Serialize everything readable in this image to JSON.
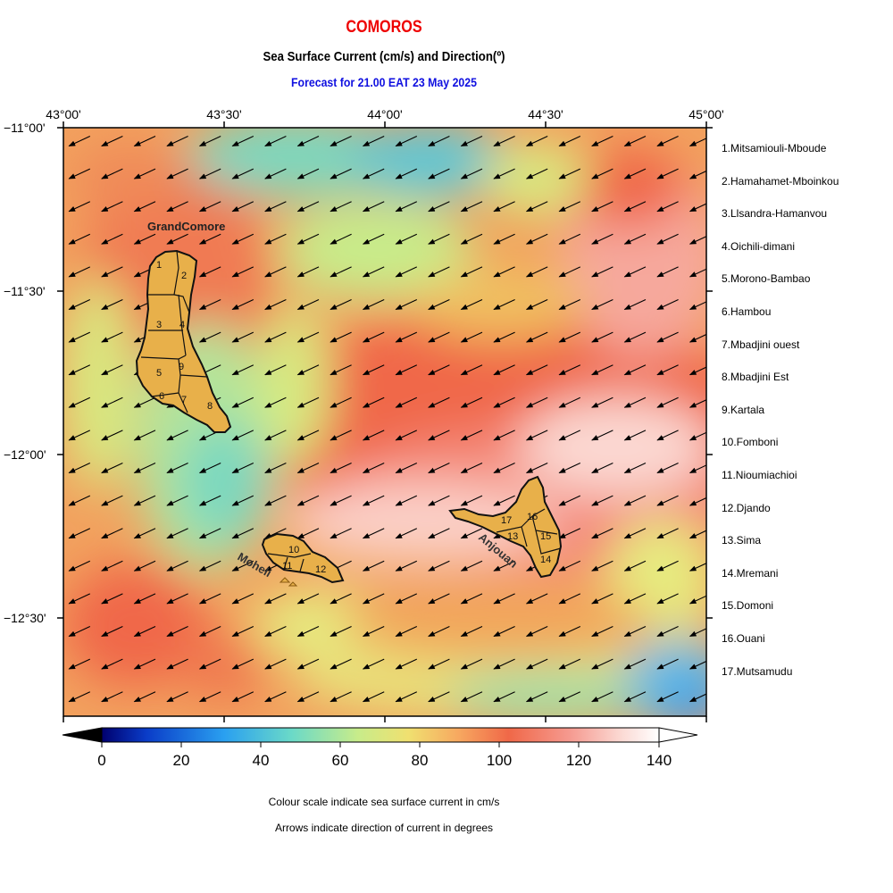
{
  "header": {
    "title": "COMOROS",
    "subtitle": "Sea Surface Current (cm/s) and Direction(º)",
    "forecast": "Forecast for  21.00 EAT 23 May 2025"
  },
  "map": {
    "lon_labels": [
      "43°00'",
      "43°30'",
      "44°00'",
      "44°30'",
      "45°00'"
    ],
    "lat_labels": [
      "−11°00'",
      "−11°30'",
      "−12°00'",
      "−12°30'"
    ],
    "extent": {
      "lon": [
        43.0,
        45.0
      ],
      "lat": [
        -12.8,
        -11.0
      ]
    },
    "arrow_direction_deg": 245,
    "island_labels": {
      "grand_comore": "GrandComore",
      "moheli": "Moheli",
      "anjouan": "Anjouan"
    },
    "region_numbers": [
      "1",
      "2",
      "3",
      "4",
      "5",
      "6",
      "7",
      "8",
      "9",
      "10",
      "11",
      "12",
      "13",
      "14",
      "15",
      "16",
      "17"
    ]
  },
  "legend": {
    "regions": [
      "1.Mitsamiouli-Mboude",
      "2.Hamahamet-Mboinkou",
      "3.Llsandra-Hamanvou",
      "4.Oichili-dimani",
      "5.Morono-Bambao",
      "6.Hambou",
      "7.Mbadjini ouest",
      "8.Mbadjini Est",
      "9.Kartala",
      "10.Fomboni",
      "11.Nioumiachioi",
      "12.Djando",
      "13.Sima",
      "14.Mremani",
      "15.Domoni",
      "16.Ouani",
      "17.Mutsamudu"
    ]
  },
  "colorbar": {
    "ticks": [
      "0",
      "20",
      "40",
      "60",
      "80",
      "100",
      "120",
      "140"
    ],
    "colors": [
      "#00006e",
      "#0a3cc8",
      "#2aa0f0",
      "#6ad9c8",
      "#c8ec8a",
      "#f0e070",
      "#f7a860",
      "#f06848",
      "#f59a90",
      "#fbd8d2",
      "#ffffff"
    ],
    "island_fill": "#e8b04a"
  },
  "notes": {
    "line1": "Colour scale indicate sea surface current in cm/s",
    "line2": "Arrows indicate direction of current in degrees"
  }
}
